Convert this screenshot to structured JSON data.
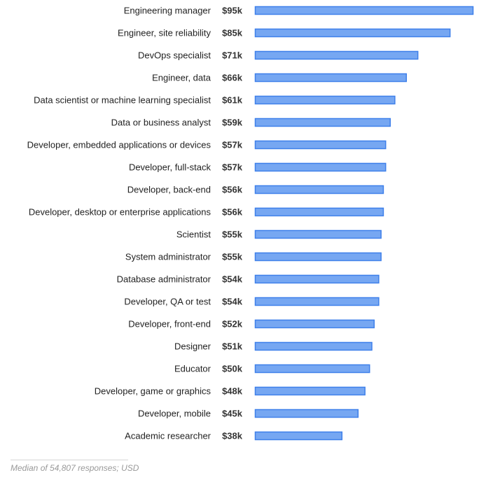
{
  "chart_data": {
    "type": "bar",
    "orientation": "horizontal",
    "categories": [
      "Engineering manager",
      "Engineer, site reliability",
      "DevOps specialist",
      "Engineer, data",
      "Data scientist or machine learning specialist",
      "Data or business analyst",
      "Developer, embedded applications or devices",
      "Developer, full-stack",
      "Developer, back-end",
      "Developer, desktop or enterprise applications",
      "Scientist",
      "System administrator",
      "Database administrator",
      "Developer, QA or test",
      "Developer, front-end",
      "Designer",
      "Educator",
      "Developer, game or graphics",
      "Developer, mobile",
      "Academic researcher"
    ],
    "values": [
      95,
      85,
      71,
      66,
      61,
      59,
      57,
      57,
      56,
      56,
      55,
      55,
      54,
      54,
      52,
      51,
      50,
      48,
      45,
      38
    ],
    "value_labels": [
      "$95k",
      "$85k",
      "$71k",
      "$66k",
      "$61k",
      "$59k",
      "$57k",
      "$57k",
      "$56k",
      "$56k",
      "$55k",
      "$55k",
      "$54k",
      "$54k",
      "$52k",
      "$51k",
      "$50k",
      "$48k",
      "$45k",
      "$38k"
    ],
    "xlim": [
      0,
      95
    ],
    "grid": false,
    "legend": "none",
    "bar_fill": "#76a7f2",
    "bar_stroke": "#3f80ea"
  },
  "footnote": "Median of 54,807 responses; USD"
}
